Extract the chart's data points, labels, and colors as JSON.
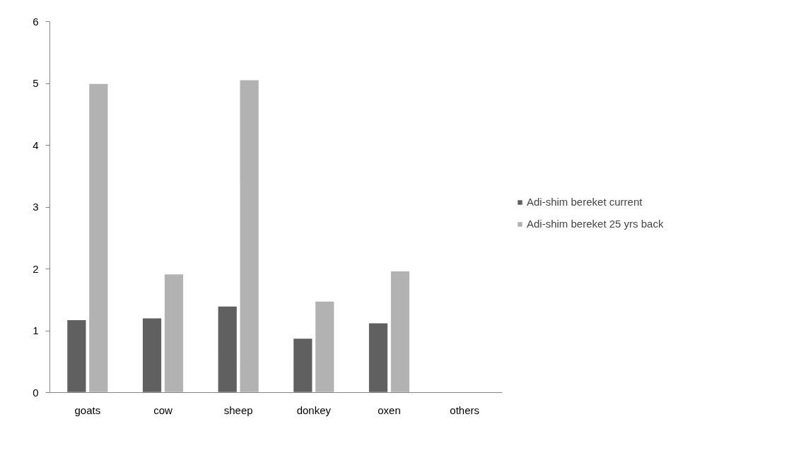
{
  "chart_data": {
    "type": "bar",
    "categories": [
      "goats",
      "cow",
      "sheep",
      "donkey",
      "oxen",
      "others"
    ],
    "series": [
      {
        "name": "Adi-shim bereket current",
        "color": "#606060",
        "values": [
          1.18,
          1.21,
          1.4,
          0.88,
          1.13,
          0.01
        ]
      },
      {
        "name": "Adi-shim bereket 25 yrs back",
        "color": "#b2b2b2",
        "values": [
          5.0,
          1.92,
          5.06,
          1.48,
          1.97,
          null
        ]
      }
    ],
    "ylim": [
      0,
      6
    ],
    "yticks": [
      0,
      1,
      2,
      3,
      4,
      5,
      6
    ],
    "grid": false,
    "legend": "right"
  }
}
